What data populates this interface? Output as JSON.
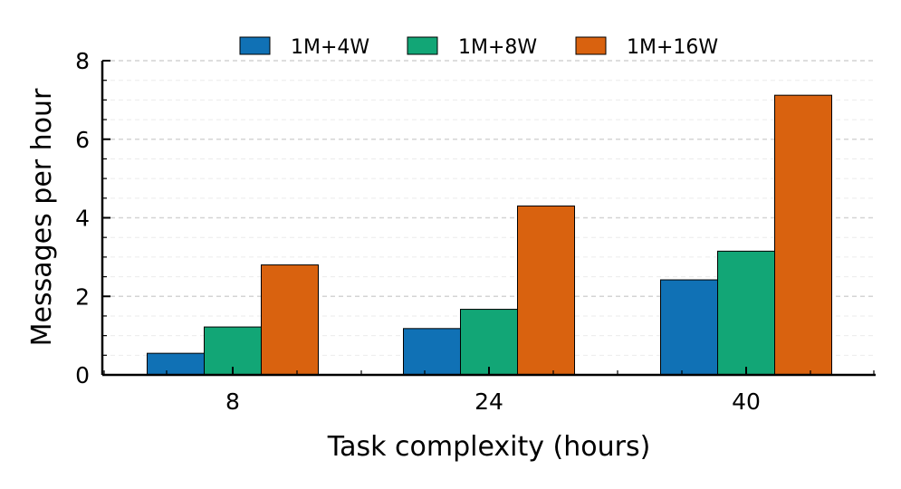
{
  "chart_data": {
    "type": "bar",
    "title": "",
    "xlabel": "Task complexity (hours)",
    "ylabel": "Messages per hour",
    "categories": [
      "8",
      "24",
      "40"
    ],
    "series": [
      {
        "name": "1M+4W",
        "color": "#1071b5",
        "values": [
          0.55,
          1.18,
          2.42
        ]
      },
      {
        "name": "1M+8W",
        "color": "#12a676",
        "values": [
          1.22,
          1.67,
          3.15
        ]
      },
      {
        "name": "1M+16W",
        "color": "#d9620f",
        "values": [
          2.8,
          4.3,
          7.12
        ]
      }
    ],
    "ylim": [
      0,
      8
    ],
    "yticks": [
      "0",
      "2",
      "4",
      "6",
      "8"
    ],
    "grid": true,
    "legend_position": "top-center"
  }
}
